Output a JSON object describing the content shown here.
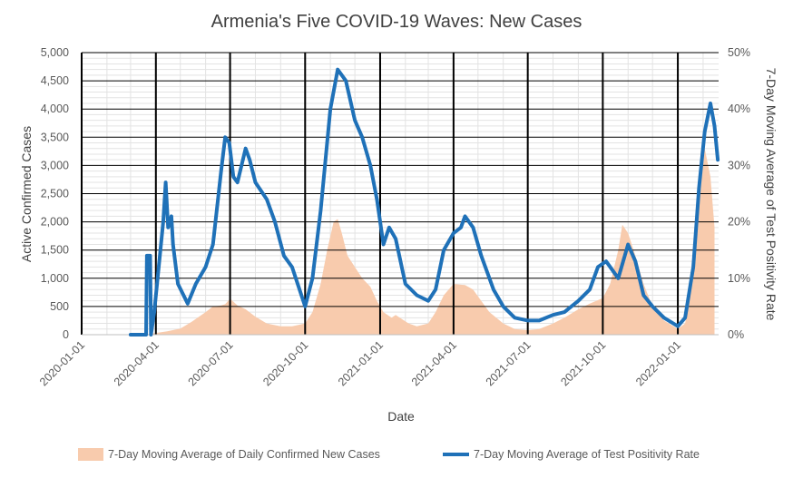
{
  "chart_data": {
    "type": "line",
    "title": "Armenia's Five COVID-19 Waves: New Cases",
    "xlabel": "Date",
    "ylabel_left": "Active Confirmed Cases",
    "ylabel_right": "7-Day Moving Average of Test Positivity Rate",
    "x_ticks": [
      "2020-01-01",
      "2020-04-01",
      "2020-07-01",
      "2020-10-01",
      "2021-01-01",
      "2021-04-01",
      "2021-07-01",
      "2021-10-01",
      "2022-01-01"
    ],
    "y_left": {
      "min": 0,
      "max": 5000,
      "ticks": [
        "0",
        "500",
        "1,000",
        "1,500",
        "2,000",
        "2,500",
        "3,000",
        "3,500",
        "4,000",
        "4,500",
        "5,000"
      ]
    },
    "y_right": {
      "min": 0,
      "max": 50,
      "ticks": [
        "0%",
        "10%",
        "20%",
        "30%",
        "40%",
        "50%"
      ]
    },
    "grid": true,
    "legend_position": "bottom",
    "series": [
      {
        "name": "7-Day Moving Average of Daily Confirmed New Cases",
        "type": "area",
        "axis": "left",
        "color": "#f8cbad",
        "points": [
          [
            "2020-03-01",
            0
          ],
          [
            "2020-03-20",
            5
          ],
          [
            "2020-04-01",
            30
          ],
          [
            "2020-04-15",
            60
          ],
          [
            "2020-05-01",
            110
          ],
          [
            "2020-05-15",
            230
          ],
          [
            "2020-06-01",
            400
          ],
          [
            "2020-06-10",
            500
          ],
          [
            "2020-06-20",
            520
          ],
          [
            "2020-06-25",
            540
          ],
          [
            "2020-07-01",
            640
          ],
          [
            "2020-07-10",
            520
          ],
          [
            "2020-07-20",
            450
          ],
          [
            "2020-08-01",
            320
          ],
          [
            "2020-08-15",
            200
          ],
          [
            "2020-09-01",
            150
          ],
          [
            "2020-09-15",
            150
          ],
          [
            "2020-10-01",
            200
          ],
          [
            "2020-10-10",
            400
          ],
          [
            "2020-10-20",
            900
          ],
          [
            "2020-10-28",
            1500
          ],
          [
            "2020-11-05",
            2000
          ],
          [
            "2020-11-10",
            2050
          ],
          [
            "2020-11-15",
            1800
          ],
          [
            "2020-11-22",
            1400
          ],
          [
            "2020-12-01",
            1200
          ],
          [
            "2020-12-10",
            1000
          ],
          [
            "2020-12-20",
            850
          ],
          [
            "2020-12-28",
            600
          ],
          [
            "2021-01-05",
            400
          ],
          [
            "2021-01-15",
            300
          ],
          [
            "2021-01-20",
            350
          ],
          [
            "2021-01-25",
            300
          ],
          [
            "2021-02-05",
            200
          ],
          [
            "2021-02-15",
            150
          ],
          [
            "2021-03-01",
            200
          ],
          [
            "2021-03-10",
            400
          ],
          [
            "2021-03-20",
            700
          ],
          [
            "2021-04-01",
            900
          ],
          [
            "2021-04-15",
            880
          ],
          [
            "2021-04-25",
            800
          ],
          [
            "2021-05-05",
            600
          ],
          [
            "2021-05-15",
            400
          ],
          [
            "2021-06-01",
            200
          ],
          [
            "2021-06-15",
            100
          ],
          [
            "2021-07-01",
            80
          ],
          [
            "2021-07-15",
            100
          ],
          [
            "2021-08-01",
            200
          ],
          [
            "2021-08-15",
            300
          ],
          [
            "2021-09-01",
            450
          ],
          [
            "2021-09-15",
            550
          ],
          [
            "2021-10-01",
            650
          ],
          [
            "2021-10-10",
            900
          ],
          [
            "2021-10-20",
            1500
          ],
          [
            "2021-10-25",
            1950
          ],
          [
            "2021-11-01",
            1800
          ],
          [
            "2021-11-10",
            1400
          ],
          [
            "2021-11-20",
            900
          ],
          [
            "2021-12-01",
            500
          ],
          [
            "2021-12-15",
            250
          ],
          [
            "2022-01-01",
            100
          ],
          [
            "2022-01-10",
            200
          ],
          [
            "2022-01-20",
            1000
          ],
          [
            "2022-01-27",
            2300
          ],
          [
            "2022-02-03",
            3300
          ],
          [
            "2022-02-10",
            2800
          ],
          [
            "2022-02-15",
            1900
          ]
        ]
      },
      {
        "name": "7-Day Moving Average of Test Positivity Rate",
        "type": "line",
        "axis": "right",
        "color": "#1f71b8",
        "points": [
          [
            "2020-03-01",
            0
          ],
          [
            "2020-03-20",
            0
          ],
          [
            "2020-03-21",
            14
          ],
          [
            "2020-03-25",
            14
          ],
          [
            "2020-03-26",
            0
          ],
          [
            "2020-03-30",
            4
          ],
          [
            "2020-04-10",
            20
          ],
          [
            "2020-04-13",
            27
          ],
          [
            "2020-04-16",
            19
          ],
          [
            "2020-04-20",
            21
          ],
          [
            "2020-04-22",
            16
          ],
          [
            "2020-04-28",
            9
          ],
          [
            "2020-05-10",
            5.5
          ],
          [
            "2020-05-20",
            9
          ],
          [
            "2020-06-01",
            12
          ],
          [
            "2020-06-10",
            16
          ],
          [
            "2020-06-20",
            29
          ],
          [
            "2020-06-25",
            35
          ],
          [
            "2020-06-30",
            34
          ],
          [
            "2020-07-05",
            28
          ],
          [
            "2020-07-10",
            27
          ],
          [
            "2020-07-20",
            33
          ],
          [
            "2020-07-25",
            31
          ],
          [
            "2020-08-01",
            27
          ],
          [
            "2020-08-15",
            24
          ],
          [
            "2020-08-25",
            20
          ],
          [
            "2020-09-05",
            14
          ],
          [
            "2020-09-15",
            12
          ],
          [
            "2020-10-01",
            5
          ],
          [
            "2020-10-10",
            10
          ],
          [
            "2020-10-20",
            22
          ],
          [
            "2020-11-01",
            40
          ],
          [
            "2020-11-10",
            47
          ],
          [
            "2020-11-20",
            45
          ],
          [
            "2020-12-01",
            38
          ],
          [
            "2020-12-10",
            35
          ],
          [
            "2020-12-20",
            30
          ],
          [
            "2020-12-28",
            24
          ],
          [
            "2021-01-05",
            16
          ],
          [
            "2021-01-12",
            19
          ],
          [
            "2021-01-20",
            17
          ],
          [
            "2021-02-01",
            9
          ],
          [
            "2021-02-15",
            7
          ],
          [
            "2021-03-01",
            6
          ],
          [
            "2021-03-10",
            8
          ],
          [
            "2021-03-20",
            15
          ],
          [
            "2021-04-01",
            18
          ],
          [
            "2021-04-10",
            19
          ],
          [
            "2021-04-15",
            21
          ],
          [
            "2021-04-25",
            19
          ],
          [
            "2021-05-05",
            14
          ],
          [
            "2021-05-20",
            8
          ],
          [
            "2021-06-01",
            5
          ],
          [
            "2021-06-15",
            3
          ],
          [
            "2021-07-01",
            2.5
          ],
          [
            "2021-07-15",
            2.5
          ],
          [
            "2021-08-01",
            3.5
          ],
          [
            "2021-08-15",
            4
          ],
          [
            "2021-09-01",
            6
          ],
          [
            "2021-09-15",
            8
          ],
          [
            "2021-09-25",
            12
          ],
          [
            "2021-10-05",
            13
          ],
          [
            "2021-10-20",
            10
          ],
          [
            "2021-11-01",
            16
          ],
          [
            "2021-11-10",
            13
          ],
          [
            "2021-11-20",
            7
          ],
          [
            "2021-12-01",
            5
          ],
          [
            "2021-12-15",
            3
          ],
          [
            "2022-01-01",
            1.5
          ],
          [
            "2022-01-10",
            3
          ],
          [
            "2022-01-20",
            12
          ],
          [
            "2022-01-27",
            26
          ],
          [
            "2022-02-03",
            36
          ],
          [
            "2022-02-10",
            41
          ],
          [
            "2022-02-15",
            37
          ],
          [
            "2022-02-19",
            31
          ]
        ]
      }
    ]
  }
}
